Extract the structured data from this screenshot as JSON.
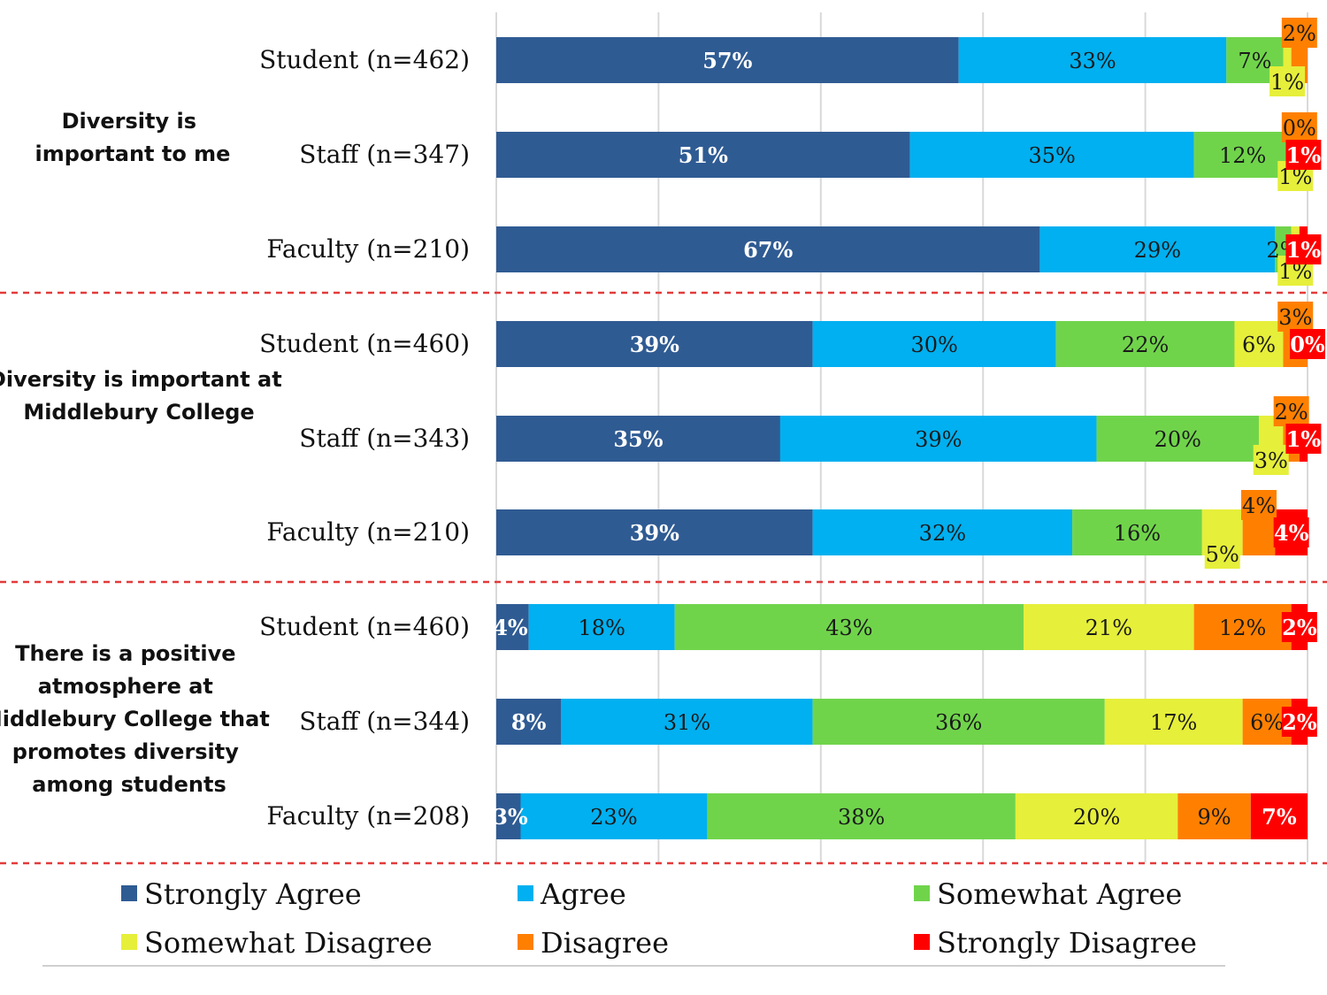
{
  "chart_data": {
    "type": "bar",
    "orientation": "horizontal",
    "stacked": true,
    "title": "",
    "xlim": [
      0,
      100
    ],
    "legend_position": "bottom",
    "series": [
      {
        "name": "Strongly Agree",
        "color": "#2f5b93"
      },
      {
        "name": "Agree",
        "color": "#00b0f0"
      },
      {
        "name": "Somewhat Agree",
        "color": "#70d44b"
      },
      {
        "name": "Somewhat Disagree",
        "color": "#e6ef3a"
      },
      {
        "name": "Disagree",
        "color": "#ff8000"
      },
      {
        "name": "Strongly Disagree",
        "color": "#ff0000"
      }
    ],
    "groups": [
      {
        "title": "Diversity is important to me",
        "rows": [
          {
            "label": "Student (n=462)",
            "values": [
              57,
              33,
              7,
              1,
              2,
              0
            ],
            "value_labels": [
              "57%",
              "33%",
              "7%",
              "1%",
              "2%",
              ""
            ]
          },
          {
            "label": "Staff (n=347)",
            "values": [
              51,
              35,
              12,
              1,
              0,
              1
            ],
            "value_labels": [
              "51%",
              "35%",
              "12%",
              "1%",
              "0%",
              "1%"
            ]
          },
          {
            "label": "Faculty (n=210)",
            "values": [
              67,
              29,
              2,
              1,
              0,
              1
            ],
            "value_labels": [
              "67%",
              "29%",
              "2%",
              "1%",
              "",
              "1%"
            ]
          }
        ]
      },
      {
        "title": "Diversity is important at Middlebury College",
        "rows": [
          {
            "label": "Student (n=460)",
            "values": [
              39,
              30,
              22,
              6,
              3,
              0
            ],
            "value_labels": [
              "39%",
              "30%",
              "22%",
              "6%",
              "3%",
              "0%"
            ]
          },
          {
            "label": "Staff (n=343)",
            "values": [
              35,
              39,
              20,
              3,
              2,
              1
            ],
            "value_labels": [
              "35%",
              "39%",
              "20%",
              "3%",
              "2%",
              "1%"
            ]
          },
          {
            "label": "Faculty (n=210)",
            "values": [
              39,
              32,
              16,
              5,
              4,
              4
            ],
            "value_labels": [
              "39%",
              "32%",
              "16%",
              "5%",
              "4%",
              "4%"
            ]
          }
        ]
      },
      {
        "title": "There is a positive atmosphere at Middlebury College that promotes diversity among students",
        "rows": [
          {
            "label": "Student (n=460)",
            "values": [
              4,
              18,
              43,
              21,
              12,
              2
            ],
            "value_labels": [
              "4%",
              "18%",
              "43%",
              "21%",
              "12%",
              "2%"
            ]
          },
          {
            "label": "Staff (n=344)",
            "values": [
              8,
              31,
              36,
              17,
              6,
              2
            ],
            "value_labels": [
              "8%",
              "31%",
              "36%",
              "17%",
              "6%",
              "2%"
            ]
          },
          {
            "label": "Faculty (n=208)",
            "values": [
              3,
              23,
              38,
              20,
              9,
              7
            ],
            "value_labels": [
              "3%",
              "23%",
              "38%",
              "20%",
              "9%",
              "7%"
            ]
          }
        ]
      }
    ]
  }
}
